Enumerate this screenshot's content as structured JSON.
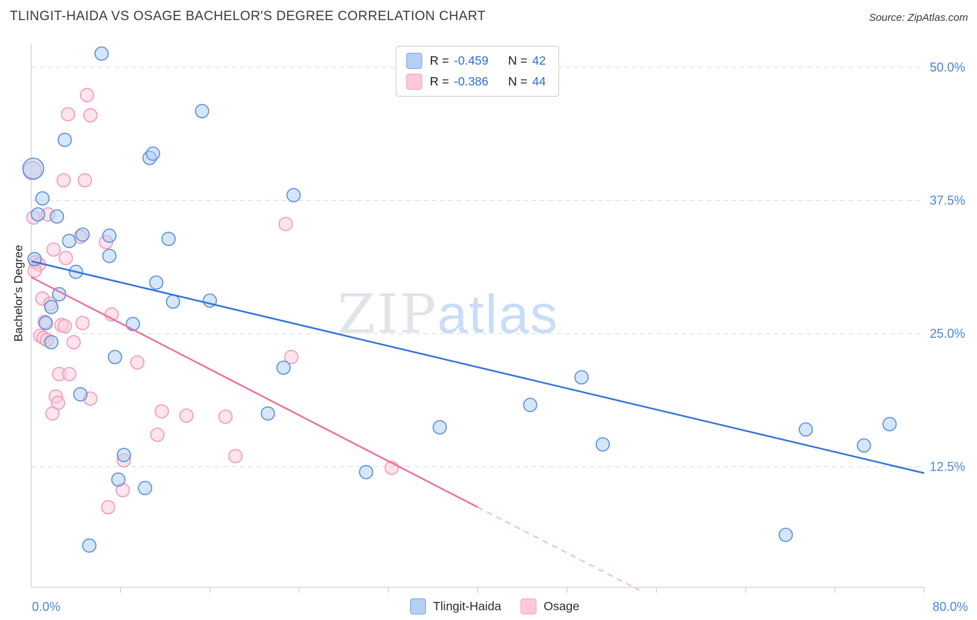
{
  "header": {
    "title": "TLINGIT-HAIDA VS OSAGE BACHELOR'S DEGREE CORRELATION CHART",
    "source": "Source: ZipAtlas.com"
  },
  "watermark": {
    "zip": "ZIP",
    "atlas": "atlas"
  },
  "axes": {
    "y_label": "Bachelor's Degree",
    "x_min_label": "0.0%",
    "x_max_label": "80.0%",
    "x_range": [
      0,
      80
    ],
    "y_ticks": [
      {
        "value": 50,
        "label": "50.0%"
      },
      {
        "value": 37.5,
        "label": "37.5%"
      },
      {
        "value": 25,
        "label": "25.0%"
      },
      {
        "value": 12.5,
        "label": "12.5%"
      }
    ],
    "grid": "dashed-horizontal"
  },
  "stats": {
    "rows": [
      {
        "series": "Tlingit-Haida",
        "r_label": "R =",
        "r_value": "-0.459",
        "n_label": "N =",
        "n_value": "42"
      },
      {
        "series": "Osage",
        "r_label": "R =",
        "r_value": "-0.386",
        "n_label": "N =",
        "n_value": "44"
      }
    ]
  },
  "legend": {
    "items": [
      {
        "label": "Tlingit-Haida"
      },
      {
        "label": "Osage"
      }
    ]
  },
  "colors": {
    "tick_label": "#4a86d8",
    "axis_line": "#c6c6c6",
    "grid_line": "#d9d9d9",
    "title_text": "#3b3b3b"
  },
  "chart_data": {
    "type": "scatter",
    "title": "TLINGIT-HAIDA VS OSAGE BACHELOR'S DEGREE CORRELATION CHART",
    "ylabel": "Bachelor's Degree",
    "xlim": [
      0,
      80
    ],
    "ylim": [
      0,
      52
    ],
    "x_unit": "percent",
    "y_unit": "percent",
    "legend_position": "bottom",
    "series": [
      {
        "name": "Tlingit-Haida",
        "r": -0.459,
        "n": 42,
        "fill": "#aecdf3",
        "edge": "#5b91dc",
        "line_color": "#3273d6",
        "trend": {
          "x1": 0,
          "y1": 31.8,
          "x2": 80,
          "y2": 11.9
        },
        "points": [
          [
            6.3,
            51.3
          ],
          [
            15.3,
            45.9
          ],
          [
            3.0,
            43.2
          ],
          [
            10.6,
            41.5
          ],
          [
            10.9,
            41.9
          ],
          [
            0.18,
            40.5,
            15
          ],
          [
            1.0,
            37.7
          ],
          [
            0.6,
            36.2
          ],
          [
            2.3,
            36.0
          ],
          [
            23.5,
            38.0
          ],
          [
            3.4,
            33.7
          ],
          [
            4.6,
            34.3
          ],
          [
            7.0,
            34.2
          ],
          [
            12.3,
            33.9
          ],
          [
            7.0,
            32.3
          ],
          [
            0.3,
            32.0
          ],
          [
            4.0,
            30.8
          ],
          [
            11.2,
            29.8
          ],
          [
            2.5,
            28.7
          ],
          [
            12.7,
            28.0
          ],
          [
            16.0,
            28.1
          ],
          [
            1.3,
            26.0
          ],
          [
            1.8,
            27.5
          ],
          [
            9.1,
            25.9
          ],
          [
            1.8,
            24.2
          ],
          [
            7.5,
            22.8
          ],
          [
            22.6,
            21.8
          ],
          [
            49.3,
            20.9
          ],
          [
            4.4,
            19.3
          ],
          [
            21.2,
            17.5
          ],
          [
            44.7,
            18.3
          ],
          [
            36.6,
            16.2
          ],
          [
            51.2,
            14.6
          ],
          [
            69.4,
            16.0
          ],
          [
            74.6,
            14.5
          ],
          [
            76.9,
            16.5
          ],
          [
            8.3,
            13.6
          ],
          [
            7.8,
            11.3
          ],
          [
            10.2,
            10.5
          ],
          [
            30.0,
            12.0
          ],
          [
            67.6,
            6.1
          ],
          [
            5.2,
            5.1
          ]
        ]
      },
      {
        "name": "Osage",
        "r": -0.386,
        "n": 44,
        "fill": "#fbc9db",
        "edge": "#f29ab9",
        "line_color": "#ec6f9c",
        "trend": {
          "x1": 0,
          "y1": 30.3,
          "x2": 40,
          "y2": 8.7
        },
        "trend_dash": {
          "x1": 40,
          "y1": 8.7,
          "x2": 54.5,
          "y2": 0.9,
          "color": "#f3abc5"
        },
        "points": [
          [
            5.0,
            47.4
          ],
          [
            3.3,
            45.6
          ],
          [
            5.3,
            45.5
          ],
          [
            2.9,
            39.4
          ],
          [
            4.8,
            39.4
          ],
          [
            0.1,
            40.3,
            13
          ],
          [
            0.2,
            35.9
          ],
          [
            1.5,
            36.2
          ],
          [
            22.8,
            35.3
          ],
          [
            2.0,
            32.9
          ],
          [
            6.7,
            33.6
          ],
          [
            4.4,
            34.1
          ],
          [
            0.4,
            31.7
          ],
          [
            0.7,
            31.5
          ],
          [
            3.1,
            32.1
          ],
          [
            1.0,
            28.3
          ],
          [
            1.7,
            27.8
          ],
          [
            7.2,
            26.8
          ],
          [
            1.2,
            26.1
          ],
          [
            2.7,
            25.8
          ],
          [
            3.0,
            25.7
          ],
          [
            4.6,
            26.0
          ],
          [
            0.8,
            24.8
          ],
          [
            1.1,
            24.6
          ],
          [
            3.8,
            24.2
          ],
          [
            9.5,
            22.3
          ],
          [
            2.5,
            21.2
          ],
          [
            3.4,
            21.2
          ],
          [
            23.3,
            22.8
          ],
          [
            2.2,
            19.1
          ],
          [
            2.4,
            18.5
          ],
          [
            5.3,
            18.9
          ],
          [
            1.9,
            17.5
          ],
          [
            11.7,
            17.7
          ],
          [
            13.9,
            17.3
          ],
          [
            17.4,
            17.2
          ],
          [
            11.3,
            15.5
          ],
          [
            8.3,
            13.1
          ],
          [
            18.3,
            13.5
          ],
          [
            32.3,
            12.4
          ],
          [
            8.2,
            10.3
          ],
          [
            6.9,
            8.7
          ],
          [
            0.3,
            30.9
          ],
          [
            1.4,
            24.4
          ]
        ]
      }
    ]
  }
}
